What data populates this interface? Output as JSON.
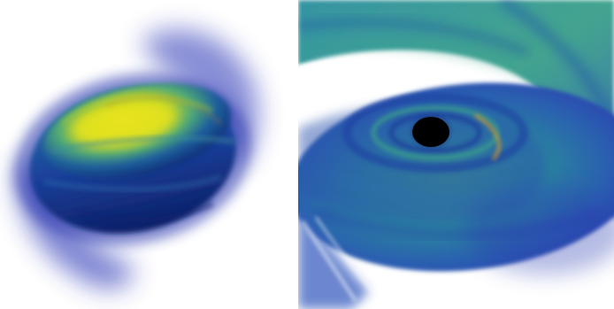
{
  "figure": {
    "panels": [
      {
        "id": "left",
        "subject": "volume-rendered-neutron-star-merger-remnant"
      },
      {
        "id": "right",
        "subject": "volume-rendered-black-hole-accretion-disk"
      }
    ],
    "colormap": {
      "low": "#1f2aa8",
      "mid_low": "#2a5fae",
      "mid": "#2c8f99",
      "mid_high": "#58b46b",
      "high": "#e3df1f"
    },
    "black_hole_color": "#000000",
    "background_color": "#ffffff"
  }
}
